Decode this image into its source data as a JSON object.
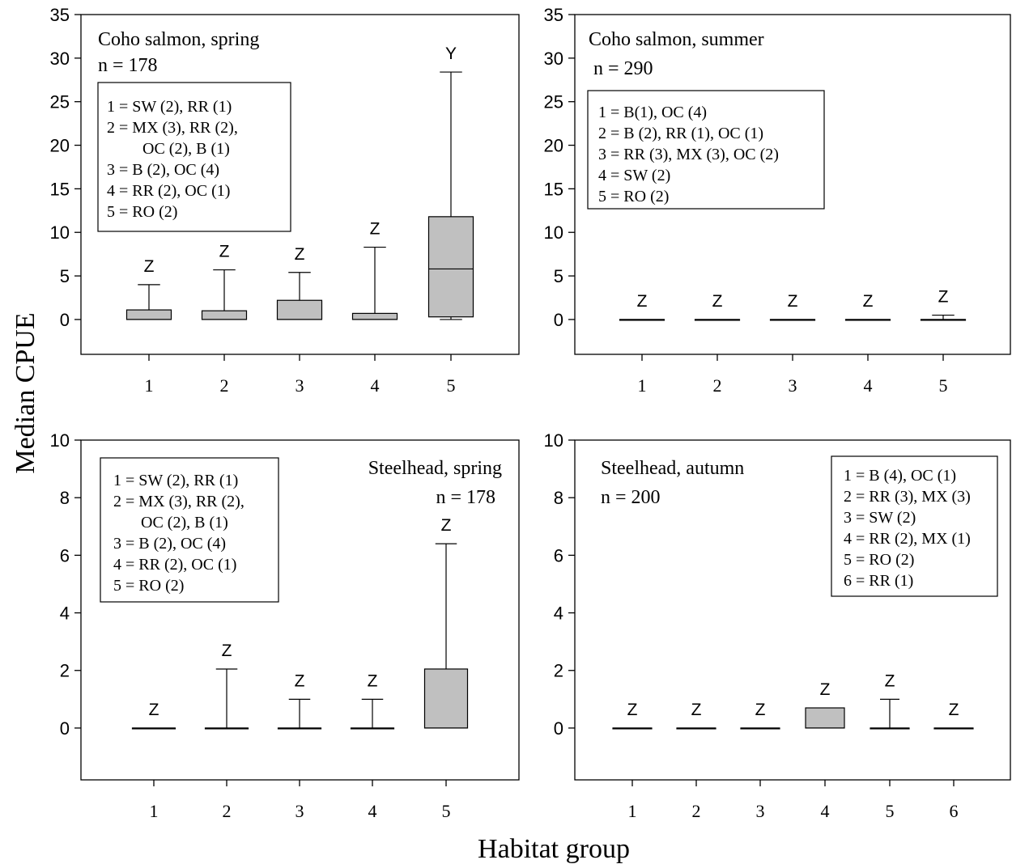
{
  "figure": {
    "ylabel": "Median CPUE",
    "xlabel": "Habitat group"
  },
  "chart_data": [
    {
      "type": "box",
      "title": "Coho salmon, spring",
      "n_label": "n = 178",
      "xlabel": "Habitat group",
      "ylabel": "Median CPUE",
      "ylim": [
        -4,
        35
      ],
      "yticks": [
        0,
        5,
        10,
        15,
        20,
        25,
        30,
        35
      ],
      "categories": [
        "1",
        "2",
        "3",
        "4",
        "5"
      ],
      "boxes": [
        {
          "category": "1",
          "whisker_low": 0,
          "q1": 0,
          "median": 0,
          "q3": 1.1,
          "whisker_high": 4.0,
          "letter": "Z"
        },
        {
          "category": "2",
          "whisker_low": 0,
          "q1": 0,
          "median": 0,
          "q3": 1.0,
          "whisker_high": 5.7,
          "letter": "Z"
        },
        {
          "category": "3",
          "whisker_low": 0,
          "q1": 0,
          "median": 0,
          "q3": 2.2,
          "whisker_high": 5.4,
          "letter": "Z"
        },
        {
          "category": "4",
          "whisker_low": 0,
          "q1": 0,
          "median": 0,
          "q3": 0.7,
          "whisker_high": 8.3,
          "letter": "Z"
        },
        {
          "category": "5",
          "whisker_low": 0,
          "q1": 0.3,
          "median": 5.8,
          "q3": 11.8,
          "whisker_high": 28.4,
          "letter": "Y"
        }
      ],
      "legend": [
        "1 = SW (2), RR (1)",
        "2 = MX (3), RR (2),",
        "OC (2), B (1)",
        "3 = B (2), OC (4)",
        "4 = RR (2), OC (1)",
        "5 = RO (2)"
      ]
    },
    {
      "type": "box",
      "title": "Coho salmon, summer",
      "n_label": "n = 290",
      "xlabel": "Habitat group",
      "ylabel": "Median CPUE",
      "ylim": [
        -4,
        35
      ],
      "yticks": [
        0,
        5,
        10,
        15,
        20,
        25,
        30,
        35
      ],
      "categories": [
        "1",
        "2",
        "3",
        "4",
        "5"
      ],
      "boxes": [
        {
          "category": "1",
          "whisker_low": 0,
          "q1": 0,
          "median": 0,
          "q3": 0,
          "whisker_high": 0,
          "letter": "Z"
        },
        {
          "category": "2",
          "whisker_low": 0,
          "q1": 0,
          "median": 0,
          "q3": 0,
          "whisker_high": 0,
          "letter": "Z"
        },
        {
          "category": "3",
          "whisker_low": 0,
          "q1": 0,
          "median": 0,
          "q3": 0,
          "whisker_high": 0,
          "letter": "Z"
        },
        {
          "category": "4",
          "whisker_low": 0,
          "q1": 0,
          "median": 0,
          "q3": 0,
          "whisker_high": 0,
          "letter": "Z"
        },
        {
          "category": "5",
          "whisker_low": 0,
          "q1": 0,
          "median": 0,
          "q3": 0,
          "whisker_high": 0.5,
          "letter": "Z"
        }
      ],
      "legend": [
        "1 = B(1), OC (4)",
        "2 = B (2), RR (1), OC (1)",
        "3 = RR (3), MX (3), OC (2)",
        "4 = SW (2)",
        "5 = RO (2)"
      ]
    },
    {
      "type": "box",
      "title": "Steelhead, spring",
      "n_label": "n = 178",
      "xlabel": "Habitat group",
      "ylabel": "Median CPUE",
      "ylim": [
        -1.8,
        10
      ],
      "yticks": [
        0,
        2,
        4,
        6,
        8,
        10
      ],
      "categories": [
        "1",
        "2",
        "3",
        "4",
        "5"
      ],
      "boxes": [
        {
          "category": "1",
          "whisker_low": 0,
          "q1": 0,
          "median": 0,
          "q3": 0,
          "whisker_high": 0,
          "letter": "Z"
        },
        {
          "category": "2",
          "whisker_low": 0,
          "q1": 0,
          "median": 0,
          "q3": 0,
          "whisker_high": 2.05,
          "letter": "Z"
        },
        {
          "category": "3",
          "whisker_low": 0,
          "q1": 0,
          "median": 0,
          "q3": 0,
          "whisker_high": 1.0,
          "letter": "Z"
        },
        {
          "category": "4",
          "whisker_low": 0,
          "q1": 0,
          "median": 0,
          "q3": 0,
          "whisker_high": 1.0,
          "letter": "Z"
        },
        {
          "category": "5",
          "whisker_low": 0,
          "q1": 0,
          "median": 0,
          "q3": 2.05,
          "whisker_high": 6.4,
          "letter": "Z"
        }
      ],
      "legend": [
        "1 = SW (2), RR (1)",
        "2 = MX (3), RR (2),",
        "OC (2), B (1)",
        "3 = B (2), OC (4)",
        "4 = RR (2), OC (1)",
        "5 = RO (2)"
      ]
    },
    {
      "type": "box",
      "title": "Steelhead, autumn",
      "n_label": "n = 200",
      "xlabel": "Habitat group",
      "ylabel": "Median CPUE",
      "ylim": [
        -1.8,
        10
      ],
      "yticks": [
        0,
        2,
        4,
        6,
        8,
        10
      ],
      "categories": [
        "1",
        "2",
        "3",
        "4",
        "5",
        "6"
      ],
      "boxes": [
        {
          "category": "1",
          "whisker_low": 0,
          "q1": 0,
          "median": 0,
          "q3": 0,
          "whisker_high": 0,
          "letter": "Z"
        },
        {
          "category": "2",
          "whisker_low": 0,
          "q1": 0,
          "median": 0,
          "q3": 0,
          "whisker_high": 0,
          "letter": "Z"
        },
        {
          "category": "3",
          "whisker_low": 0,
          "q1": 0,
          "median": 0,
          "q3": 0,
          "whisker_high": 0,
          "letter": "Z"
        },
        {
          "category": "4",
          "whisker_low": 0,
          "q1": 0,
          "median": 0,
          "q3": 0.7,
          "whisker_high": 0.7,
          "letter": "Z"
        },
        {
          "category": "5",
          "whisker_low": 0,
          "q1": 0,
          "median": 0,
          "q3": 0,
          "whisker_high": 1.0,
          "letter": "Z"
        },
        {
          "category": "6",
          "whisker_low": 0,
          "q1": 0,
          "median": 0,
          "q3": 0,
          "whisker_high": 0,
          "letter": "Z"
        }
      ],
      "legend": [
        "1 = B (4), OC (1)",
        "2 = RR (3), MX (3)",
        "3 = SW (2)",
        "4 = RR (2), MX (1)",
        "5 = RO (2)",
        "6 = RR (1)"
      ]
    }
  ]
}
